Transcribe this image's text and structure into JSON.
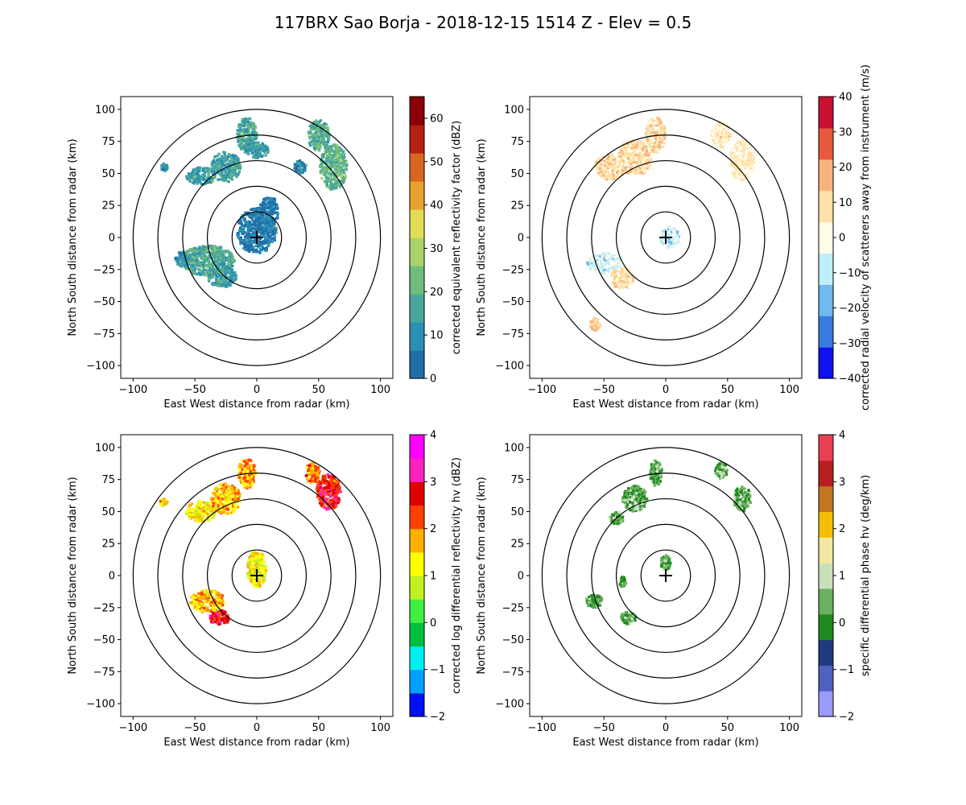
{
  "figure": {
    "title": "117BRX Sao Borja - 2018-12-15 1514 Z -  Elev = 0.5"
  },
  "axes": {
    "xlabel": "East West distance from radar (km)",
    "ylabel": "North South distance from radar (km)",
    "xlim": [
      -110,
      110
    ],
    "ylim": [
      -110,
      110
    ],
    "ticks": [
      -100,
      -75,
      -50,
      -25,
      0,
      25,
      50,
      75,
      100
    ],
    "xticks": [
      -100,
      -50,
      0,
      50,
      100
    ],
    "range_rings_km": [
      20,
      40,
      60,
      80,
      100
    ]
  },
  "chart_data": [
    {
      "type": "heatmap",
      "field": "reflectivity",
      "colorbar_label": "corrected equivalent reflectivity factor (dBZ)",
      "vmin": 0,
      "vmax": 65,
      "cbar_ticks": [
        0,
        10,
        20,
        30,
        40,
        50,
        60
      ],
      "colors": [
        "#1f6fa8",
        "#2c8fb4",
        "#4aa69c",
        "#6fbc7b",
        "#a9d46b",
        "#e3dc55",
        "#e8a32c",
        "#d96620",
        "#b52010",
        "#8a0006"
      ],
      "blobs": [
        {
          "x": 0,
          "y": 5,
          "rx": 16,
          "ry": 18,
          "v": 6
        },
        {
          "x": 10,
          "y": 20,
          "rx": 8,
          "ry": 12,
          "v": 5
        },
        {
          "x": -40,
          "y": -18,
          "rx": 22,
          "ry": 12,
          "v": 17
        },
        {
          "x": -28,
          "y": -30,
          "rx": 12,
          "ry": 9,
          "v": 14
        },
        {
          "x": -60,
          "y": -17,
          "rx": 6,
          "ry": 6,
          "v": 13
        },
        {
          "x": -45,
          "y": 48,
          "rx": 12,
          "ry": 7,
          "v": 14
        },
        {
          "x": -25,
          "y": 55,
          "rx": 12,
          "ry": 12,
          "v": 15
        },
        {
          "x": -8,
          "y": 80,
          "rx": 8,
          "ry": 14,
          "v": 16
        },
        {
          "x": 0,
          "y": 68,
          "rx": 10,
          "ry": 6,
          "v": 13
        },
        {
          "x": 62,
          "y": 55,
          "rx": 11,
          "ry": 18,
          "v": 20
        },
        {
          "x": 50,
          "y": 80,
          "rx": 9,
          "ry": 12,
          "v": 18
        },
        {
          "x": 35,
          "y": 55,
          "rx": 5,
          "ry": 5,
          "v": 9
        },
        {
          "x": -75,
          "y": 55,
          "rx": 3,
          "ry": 3,
          "v": 12
        }
      ]
    },
    {
      "type": "heatmap",
      "field": "velocity",
      "colorbar_label": "corrected radial velocity of scatterers away from instrument (m/s)",
      "vmin": -40,
      "vmax": 40,
      "cbar_ticks": [
        -40,
        -30,
        -20,
        -10,
        0,
        10,
        20,
        30,
        40
      ],
      "colors": [
        "#1010f0",
        "#3a7be0",
        "#6fb8f0",
        "#bfeef8",
        "#fffbe8",
        "#ffe2a8",
        "#f7b47a",
        "#e7593c",
        "#c81030"
      ],
      "blobs": [
        {
          "x": -45,
          "y": 55,
          "rx": 12,
          "ry": 10,
          "v": 9
        },
        {
          "x": -25,
          "y": 62,
          "rx": 14,
          "ry": 14,
          "v": 10
        },
        {
          "x": -8,
          "y": 80,
          "rx": 8,
          "ry": 14,
          "v": 11
        },
        {
          "x": 62,
          "y": 60,
          "rx": 10,
          "ry": 16,
          "v": 5
        },
        {
          "x": 45,
          "y": 80,
          "rx": 8,
          "ry": 10,
          "v": 6
        },
        {
          "x": -50,
          "y": -20,
          "rx": 14,
          "ry": 8,
          "v": -6
        },
        {
          "x": -35,
          "y": -32,
          "rx": 10,
          "ry": 8,
          "v": 9
        },
        {
          "x": 3,
          "y": 0,
          "rx": 8,
          "ry": 8,
          "v": -8
        },
        {
          "x": -57,
          "y": -68,
          "rx": 4,
          "ry": 5,
          "v": 12
        }
      ]
    },
    {
      "type": "heatmap",
      "field": "differential_reflectivity",
      "colorbar_label": "corrected log differential reflectivity hv (dBZ)",
      "vmin": -2,
      "vmax": 4,
      "cbar_ticks": [
        -2,
        -1,
        0,
        1,
        2,
        3,
        4
      ],
      "colors": [
        "#0010f0",
        "#00a0ff",
        "#00f0f0",
        "#00c040",
        "#40f040",
        "#c0f020",
        "#ffff00",
        "#ffb000",
        "#ff4000",
        "#e00000",
        "#ff20c0",
        "#ff00ff"
      ],
      "blobs": [
        {
          "x": 0,
          "y": 5,
          "rx": 8,
          "ry": 14,
          "v": 1.2
        },
        {
          "x": -40,
          "y": -20,
          "rx": 14,
          "ry": 9,
          "v": 1.6
        },
        {
          "x": -30,
          "y": -33,
          "rx": 8,
          "ry": 6,
          "v": 2.6
        },
        {
          "x": -45,
          "y": 50,
          "rx": 12,
          "ry": 8,
          "v": 1.4
        },
        {
          "x": -25,
          "y": 60,
          "rx": 12,
          "ry": 12,
          "v": 1.6
        },
        {
          "x": -8,
          "y": 80,
          "rx": 7,
          "ry": 12,
          "v": 1.8
        },
        {
          "x": 58,
          "y": 65,
          "rx": 10,
          "ry": 14,
          "v": 2.6
        },
        {
          "x": 45,
          "y": 80,
          "rx": 6,
          "ry": 8,
          "v": 2.0
        },
        {
          "x": -75,
          "y": 57,
          "rx": 3,
          "ry": 3,
          "v": 1.4
        }
      ]
    },
    {
      "type": "heatmap",
      "field": "specific_differential_phase",
      "colorbar_label": "specific differential phase hv (deg/km)",
      "vmin": -2,
      "vmax": 4,
      "cbar_ticks": [
        -2,
        -1,
        0,
        1,
        2,
        3,
        4
      ],
      "colors": [
        "#9a9af8",
        "#5060c0",
        "#203a80",
        "#208a20",
        "#6ab060",
        "#c8e0b8",
        "#f0e8a0",
        "#f2c000",
        "#c07820",
        "#b82020",
        "#e84050"
      ],
      "blobs": [
        {
          "x": -25,
          "y": 60,
          "rx": 10,
          "ry": 10,
          "v": 0.3
        },
        {
          "x": -8,
          "y": 80,
          "rx": 5,
          "ry": 10,
          "v": 0.3
        },
        {
          "x": -40,
          "y": 45,
          "rx": 6,
          "ry": 5,
          "v": 0.3
        },
        {
          "x": 62,
          "y": 60,
          "rx": 7,
          "ry": 10,
          "v": 0.3
        },
        {
          "x": 45,
          "y": 82,
          "rx": 5,
          "ry": 6,
          "v": 0.3
        },
        {
          "x": -58,
          "y": -20,
          "rx": 7,
          "ry": 5,
          "v": 0.2
        },
        {
          "x": -30,
          "y": -33,
          "rx": 6,
          "ry": 5,
          "v": 0.3
        },
        {
          "x": 0,
          "y": 10,
          "rx": 4,
          "ry": 6,
          "v": 0.4
        },
        {
          "x": -35,
          "y": -5,
          "rx": 3,
          "ry": 4,
          "v": 0.3
        }
      ]
    }
  ]
}
